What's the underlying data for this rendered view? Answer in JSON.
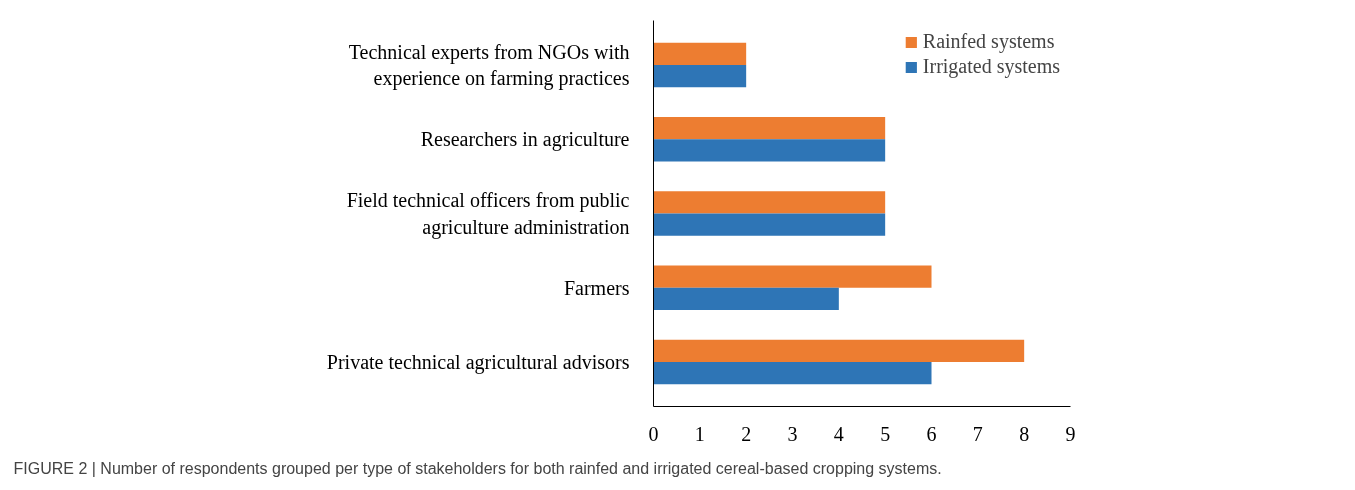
{
  "chart_data": {
    "type": "bar",
    "orientation": "horizontal",
    "categories": [
      "Technical experts from NGOs with\nexperience on farming practices",
      "Researchers in agriculture",
      "Field technical officers from public\nagriculture administration",
      "Farmers",
      "Private technical agricultural advisors"
    ],
    "series": [
      {
        "name": "Rainfed systems",
        "color": "#ed7d31",
        "values": [
          2,
          5,
          5,
          6,
          8
        ]
      },
      {
        "name": "Irrigated systems",
        "color": "#2e75b6",
        "values": [
          2,
          5,
          5,
          4,
          6
        ]
      }
    ],
    "xlim": [
      0,
      9
    ],
    "xticks": [
      0,
      1,
      2,
      3,
      4,
      5,
      6,
      7,
      8,
      9
    ],
    "grid": false,
    "legend": "top right",
    "annotations": [
      "FIGURE 2 | Number of respondents grouped per type of stakeholders for both rainfed and irrigated cereal-based cropping systems."
    ]
  }
}
